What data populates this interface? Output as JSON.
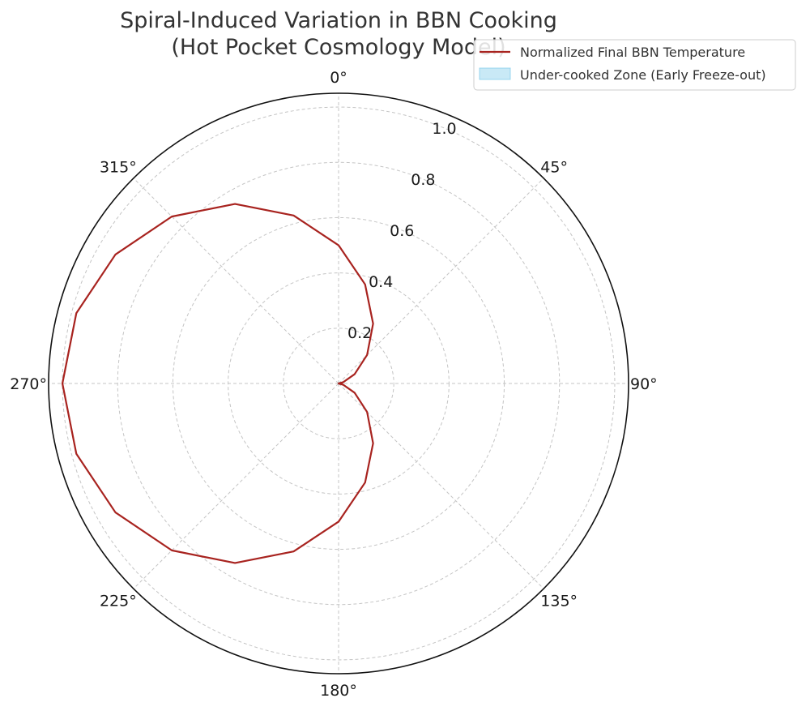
{
  "chart_data": {
    "type": "polar-line",
    "title_lines": [
      "Spiral-Induced Variation in BBN Cooking",
      "(Hot Pocket Cosmology Model)"
    ],
    "theta_zero_location": "top",
    "theta_direction": "clockwise",
    "angle_ticks_deg": [
      0,
      45,
      90,
      135,
      180,
      225,
      270,
      315
    ],
    "angle_tick_labels": [
      "0°",
      "45°",
      "90°",
      "135°",
      "180°",
      "225°",
      "270°",
      "315°"
    ],
    "radial_ticks": [
      0.2,
      0.4,
      0.6,
      0.8,
      1.0
    ],
    "radial_tick_labels": [
      "0.2",
      "0.4",
      "0.6",
      "0.8",
      "1.0"
    ],
    "rlim": [
      0,
      1.05
    ],
    "grid": true,
    "legend_position": "top-right",
    "series": [
      {
        "name": "Normalized Final BBN Temperature",
        "kind": "line",
        "color": "#a8231f",
        "theta_deg": [
          0,
          15,
          30,
          45,
          60,
          75,
          90,
          105,
          120,
          135,
          150,
          165,
          180,
          195,
          210,
          225,
          240,
          255,
          270,
          285,
          300,
          315,
          330,
          345,
          360
        ],
        "r": [
          0.5,
          0.371,
          0.25,
          0.146,
          0.067,
          0.017,
          0.0,
          0.017,
          0.067,
          0.146,
          0.25,
          0.371,
          0.5,
          0.629,
          0.75,
          0.854,
          0.933,
          0.983,
          1.0,
          0.983,
          0.933,
          0.854,
          0.75,
          0.629,
          0.5
        ]
      },
      {
        "name": "Under-cooked Zone (Early Freeze-out)",
        "kind": "area",
        "color": "#87ceeb",
        "visible_in_plot": false
      }
    ]
  }
}
